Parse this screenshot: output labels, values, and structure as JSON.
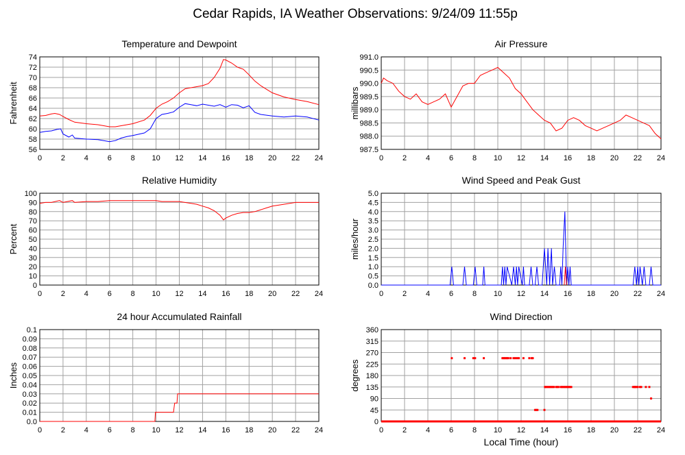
{
  "title": "Cedar Rapids, IA Weather Observations: 9/24/09 11:55p",
  "xlabel": "Local Time (hour)",
  "colors": {
    "primary": "#ff0000",
    "secondary": "#0000ff",
    "grid": "#a0a0a0"
  },
  "chart_data": [
    {
      "type": "line",
      "title": "Temperature and Dewpoint",
      "ylabel": "Fahrenheit",
      "xlim": [
        0,
        24
      ],
      "ylim": [
        56,
        74
      ],
      "xticks": [
        0,
        2,
        4,
        6,
        8,
        10,
        12,
        14,
        16,
        18,
        20,
        22,
        24
      ],
      "yticks": [
        56,
        58,
        60,
        62,
        64,
        66,
        68,
        70,
        72,
        74
      ],
      "series": [
        {
          "color": "#ff0000",
          "x": [
            0,
            0.5,
            1,
            1.3,
            1.7,
            2,
            2.5,
            3,
            4,
            5,
            6,
            6.5,
            7,
            8,
            9,
            9.5,
            10,
            10.5,
            11,
            11.5,
            12,
            12.5,
            13,
            13.5,
            14,
            14.5,
            15,
            15.5,
            15.8,
            16,
            16.5,
            17,
            17.5,
            18,
            18.5,
            19,
            19.5,
            20,
            21,
            22,
            23,
            24
          ],
          "y": [
            62.5,
            62.6,
            62.9,
            63.0,
            62.8,
            62.4,
            61.8,
            61.3,
            61.0,
            60.8,
            60.4,
            60.4,
            60.6,
            61.0,
            61.7,
            62.6,
            64.0,
            64.8,
            65.3,
            66.0,
            67.0,
            67.8,
            68.0,
            68.2,
            68.4,
            68.8,
            70.0,
            71.8,
            73.5,
            73.4,
            72.8,
            72.0,
            71.6,
            70.5,
            69.3,
            68.4,
            67.7,
            67.0,
            66.2,
            65.7,
            65.3,
            64.7
          ]
        },
        {
          "color": "#0000ff",
          "x": [
            0,
            0.5,
            1,
            1.5,
            1.8,
            2,
            2.5,
            2.8,
            3,
            3.5,
            4,
            5,
            6,
            6.5,
            7,
            7.5,
            8,
            9,
            9.5,
            10,
            10.5,
            11,
            11.5,
            12,
            12.5,
            13,
            13.5,
            14,
            14.5,
            15,
            15.5,
            16,
            16.5,
            17,
            17.5,
            18,
            18.5,
            19,
            20,
            21,
            22,
            23,
            24
          ],
          "y": [
            59.3,
            59.5,
            59.6,
            59.9,
            60.0,
            59.0,
            58.4,
            58.8,
            58.2,
            58.1,
            58.0,
            57.9,
            57.5,
            57.7,
            58.2,
            58.5,
            58.7,
            59.2,
            60.0,
            62.0,
            62.8,
            63.0,
            63.3,
            64.2,
            64.9,
            64.7,
            64.5,
            64.8,
            64.6,
            64.4,
            64.7,
            64.2,
            64.7,
            64.6,
            64.1,
            64.5,
            63.2,
            62.8,
            62.5,
            62.3,
            62.5,
            62.3,
            61.7
          ]
        }
      ]
    },
    {
      "type": "line",
      "title": "Air Pressure",
      "ylabel": "millibars",
      "xlim": [
        0,
        24
      ],
      "ylim": [
        987.5,
        991.0
      ],
      "xticks": [
        0,
        2,
        4,
        6,
        8,
        10,
        12,
        14,
        16,
        18,
        20,
        22,
        24
      ],
      "yticks": [
        "987.5",
        "988.0",
        "988.5",
        "989.0",
        "989.5",
        "990.0",
        "990.5",
        "991.0"
      ],
      "series": [
        {
          "color": "#ff0000",
          "x": [
            0,
            0.2,
            0.5,
            1,
            1.5,
            2,
            2.5,
            3,
            3.5,
            4,
            4.5,
            5,
            5.5,
            6,
            6.5,
            7,
            7.5,
            8,
            8.5,
            9,
            9.5,
            10,
            10.5,
            11,
            11.5,
            12,
            12.5,
            13,
            13.5,
            14,
            14.5,
            15,
            15.5,
            16,
            16.5,
            17,
            17.5,
            18,
            18.5,
            19,
            19.5,
            20,
            20.5,
            21,
            21.5,
            22,
            22.5,
            23,
            23.5,
            24
          ],
          "y": [
            990.0,
            990.2,
            990.1,
            990.0,
            989.7,
            989.5,
            989.4,
            989.6,
            989.3,
            989.2,
            989.3,
            989.4,
            989.6,
            989.1,
            989.5,
            989.9,
            990.0,
            990.0,
            990.3,
            990.4,
            990.5,
            990.6,
            990.4,
            990.2,
            989.8,
            989.6,
            989.3,
            989.0,
            988.8,
            988.6,
            988.5,
            988.2,
            988.3,
            988.6,
            988.7,
            988.6,
            988.4,
            988.3,
            988.2,
            988.3,
            988.4,
            988.5,
            988.6,
            988.8,
            988.7,
            988.6,
            988.5,
            988.4,
            988.1,
            987.9
          ]
        }
      ]
    },
    {
      "type": "line",
      "title": "Relative Humidity",
      "ylabel": "Percent",
      "xlim": [
        0,
        24
      ],
      "ylim": [
        0,
        100
      ],
      "xticks": [
        0,
        2,
        4,
        6,
        8,
        10,
        12,
        14,
        16,
        18,
        20,
        22,
        24
      ],
      "yticks": [
        0,
        10,
        20,
        30,
        40,
        50,
        60,
        70,
        80,
        90,
        100
      ],
      "series": [
        {
          "color": "#ff0000",
          "x": [
            0,
            0.5,
            1,
            1.7,
            2,
            2.8,
            3,
            4,
            5,
            6,
            7,
            8,
            9,
            10,
            10.5,
            11,
            12,
            13,
            13.5,
            14,
            14.5,
            15,
            15.5,
            15.8,
            16,
            16.5,
            17,
            17.5,
            18,
            18.5,
            19,
            19.5,
            20,
            21,
            22,
            23,
            24
          ],
          "y": [
            89,
            90,
            90,
            92,
            90,
            92,
            90,
            91,
            91,
            92,
            92,
            92,
            92,
            92,
            91,
            91,
            91,
            89,
            88,
            86,
            84,
            81,
            76,
            71,
            73,
            76,
            78,
            79,
            79,
            80,
            82,
            84,
            86,
            88,
            90,
            90,
            90
          ]
        }
      ]
    },
    {
      "type": "line",
      "title": "Wind Speed and Peak Gust",
      "ylabel": "miles/hour",
      "xlim": [
        0,
        24
      ],
      "ylim": [
        0,
        5.0
      ],
      "xticks": [
        0,
        2,
        4,
        6,
        8,
        10,
        12,
        14,
        16,
        18,
        20,
        22,
        24
      ],
      "yticks": [
        "0.0",
        "0.5",
        "1.0",
        "1.5",
        "2.0",
        "2.5",
        "3.0",
        "3.5",
        "4.0",
        "4.5",
        "5.0"
      ],
      "series": [
        {
          "color": "#0000ff",
          "x": [
            0,
            5.9,
            6.05,
            6.2,
            7.0,
            7.15,
            7.3,
            7.9,
            8.05,
            8.2,
            8.7,
            8.8,
            8.9,
            10.3,
            10.4,
            10.5,
            10.6,
            10.7,
            10.8,
            11.2,
            11.35,
            11.5,
            11.6,
            11.7,
            11.8,
            12.1,
            12.2,
            12.3,
            12.7,
            12.85,
            13.0,
            13.2,
            13.35,
            13.5,
            13.8,
            14.0,
            14.2,
            14.3,
            14.45,
            14.6,
            14.7,
            14.85,
            15.0,
            15.3,
            15.4,
            15.5,
            15.6,
            15.75,
            15.9,
            16.0,
            16.1,
            16.2,
            16.3,
            21.6,
            21.75,
            21.9,
            22.0,
            22.1,
            22.2,
            22.4,
            22.55,
            22.7,
            23.0,
            23.15,
            23.3,
            24
          ],
          "y": [
            0,
            0,
            1,
            0,
            0,
            1,
            0,
            0,
            1,
            0,
            0,
            1,
            0,
            0,
            1,
            0,
            1,
            0,
            1,
            0,
            1,
            0,
            1,
            0,
            1,
            0,
            1,
            0,
            0,
            1,
            0,
            0,
            1,
            0,
            0,
            2,
            0,
            2,
            0,
            2,
            0,
            1,
            0,
            0,
            1,
            0,
            2,
            4,
            0,
            1,
            0,
            1,
            0,
            0,
            1,
            0,
            1,
            0,
            1,
            0,
            1,
            0,
            0,
            1,
            0,
            0
          ]
        },
        {
          "color": "#ff0000",
          "x": [
            15.7,
            15.8,
            15.9
          ],
          "y": [
            0,
            1,
            0
          ]
        }
      ]
    },
    {
      "type": "line",
      "title": "24 hour Accumulated Rainfall",
      "ylabel": "Inches",
      "xlim": [
        0,
        24
      ],
      "ylim": [
        0,
        0.1
      ],
      "xticks": [
        0,
        2,
        4,
        6,
        8,
        10,
        12,
        14,
        16,
        18,
        20,
        22,
        24
      ],
      "yticks": [
        "0.0",
        "0.01",
        "0.02",
        "0.03",
        "0.04",
        "0.05",
        "0.06",
        "0.07",
        "0.08",
        "0.09",
        "0.1"
      ],
      "series": [
        {
          "color": "#ff0000",
          "x": [
            0,
            9.9,
            9.95,
            11.5,
            11.6,
            11.8,
            11.85,
            24
          ],
          "y": [
            0,
            0,
            0.01,
            0.01,
            0.02,
            0.02,
            0.03,
            0.03
          ]
        }
      ]
    },
    {
      "type": "scatter",
      "title": "Wind Direction",
      "ylabel": "degrees",
      "xlim": [
        0,
        24
      ],
      "ylim": [
        0,
        360
      ],
      "xticks": [
        0,
        2,
        4,
        6,
        8,
        10,
        12,
        14,
        16,
        18,
        20,
        22,
        24
      ],
      "yticks": [
        0,
        45,
        90,
        135,
        180,
        225,
        270,
        315,
        360
      ],
      "baseline": {
        "from": 0,
        "to": 24,
        "y": 0
      },
      "series": [
        {
          "color": "#ff0000",
          "x": [
            6.05,
            7.15,
            7.9,
            8.05,
            8.8,
            10.4,
            10.5,
            10.6,
            10.7,
            10.8,
            10.9,
            11.1,
            11.35,
            11.5,
            11.65,
            11.8,
            12.2,
            12.7,
            12.9,
            13.0,
            13.2,
            13.3,
            13.4,
            14.0,
            14.05,
            14.1,
            14.2,
            14.3,
            14.4,
            14.5,
            14.6,
            14.7,
            14.8,
            15.0,
            15.1,
            15.2,
            15.4,
            15.5,
            15.6,
            15.7,
            15.8,
            15.9,
            16.0,
            16.1,
            16.2,
            16.3,
            21.6,
            21.7,
            21.75,
            21.8,
            21.9,
            22.0,
            22.2,
            22.3,
            22.7,
            23.0,
            23.15
          ],
          "y": [
            248,
            248,
            248,
            248,
            248,
            248,
            248,
            248,
            248,
            248,
            248,
            248,
            248,
            248,
            248,
            248,
            248,
            248,
            248,
            248,
            45,
            45,
            45,
            45,
            135,
            135,
            135,
            135,
            135,
            135,
            135,
            135,
            135,
            135,
            135,
            135,
            135,
            135,
            135,
            135,
            135,
            135,
            135,
            135,
            135,
            135,
            135,
            135,
            135,
            135,
            135,
            135,
            135,
            135,
            135,
            135,
            90
          ]
        }
      ]
    }
  ]
}
